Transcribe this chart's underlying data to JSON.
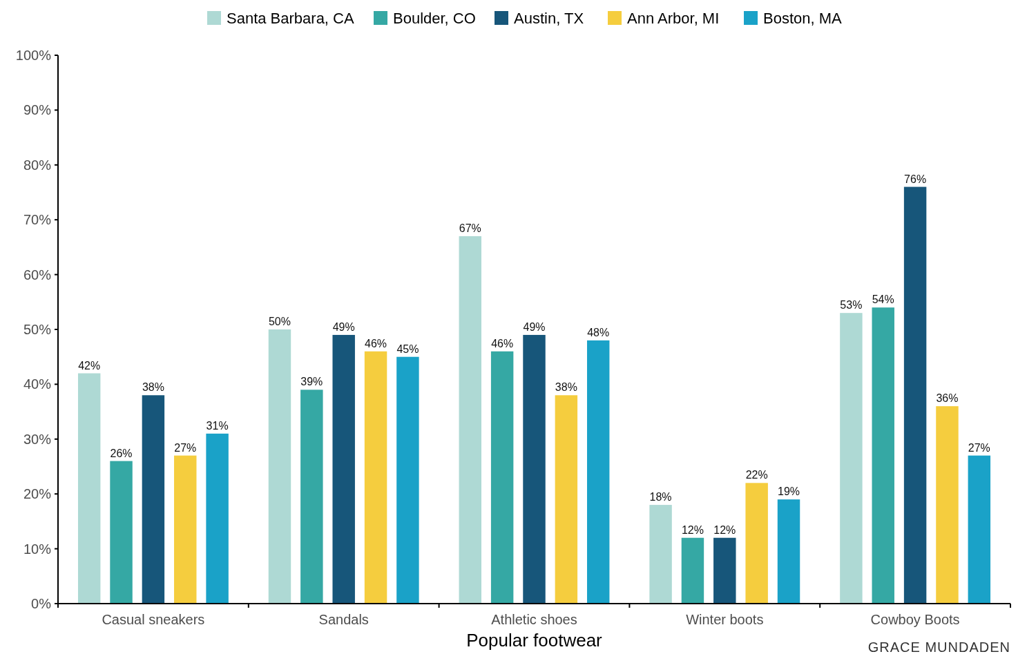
{
  "chart_data": {
    "type": "bar",
    "xlabel": "Popular footwear",
    "categories": [
      "Casual sneakers",
      "Sandals",
      "Athletic shoes",
      "Winter boots",
      "Cowboy Boots"
    ],
    "series": [
      {
        "name": "Santa Barbara, CA",
        "color": "#aed9d4",
        "values": [
          42,
          50,
          67,
          18,
          53
        ],
        "value_labels": [
          "42%",
          "50%",
          "67%",
          "18%",
          "53%"
        ]
      },
      {
        "name": "Boulder, CO",
        "color": "#35a8a4",
        "values": [
          26,
          39,
          46,
          12,
          54
        ],
        "value_labels": [
          "26%",
          "39%",
          "46%",
          "12%",
          "54%"
        ]
      },
      {
        "name": "Austin, TX",
        "color": "#17567a",
        "values": [
          38,
          49,
          49,
          12,
          76
        ],
        "value_labels": [
          "38%",
          "49%",
          "49%",
          "12%",
          "76%"
        ]
      },
      {
        "name": "Ann Arbor, MI",
        "color": "#f5cd3e",
        "values": [
          27,
          46,
          38,
          22,
          36
        ],
        "value_labels": [
          "27%",
          "46%",
          "38%",
          "22%",
          "36%"
        ]
      },
      {
        "name": "Boston, MA",
        "color": "#1aa2c8",
        "values": [
          31,
          45,
          48,
          19,
          27
        ],
        "value_labels": [
          "31%",
          "45%",
          "48%",
          "19%",
          "27%"
        ]
      }
    ],
    "ylim": [
      0,
      100
    ],
    "yticks": [
      {
        "value": 0,
        "label": "0%"
      },
      {
        "value": 10,
        "label": "10%"
      },
      {
        "value": 20,
        "label": "20%"
      },
      {
        "value": 30,
        "label": "30%"
      },
      {
        "value": 40,
        "label": "40%"
      },
      {
        "value": 50,
        "label": "50%"
      },
      {
        "value": 60,
        "label": "60%"
      },
      {
        "value": 70,
        "label": "70%"
      },
      {
        "value": 80,
        "label": "80%"
      },
      {
        "value": 90,
        "label": "90%"
      },
      {
        "value": 100,
        "label": "100%"
      }
    ],
    "grid": false,
    "legend": "top",
    "annotations": [
      "GRACE MUNDADEN"
    ]
  }
}
